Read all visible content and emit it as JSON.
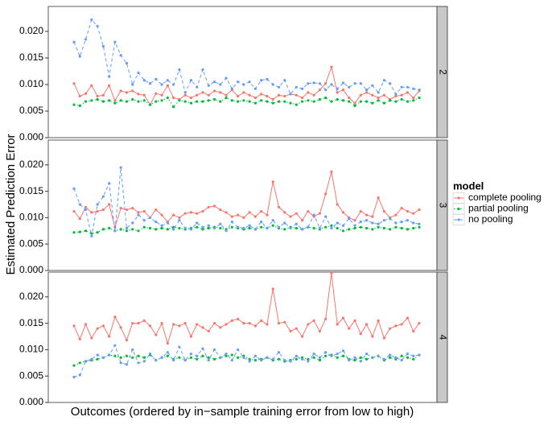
{
  "chart_data": {
    "type": "line",
    "y_label": "Estimated Prediction Error",
    "x_label": "Outcomes (ordered by in−sample training error from low to high)",
    "legend_title": "model",
    "ylim": [
      0,
      0.0247
    ],
    "yticks": [
      {
        "value": 0,
        "label": "0.000"
      },
      {
        "value": 0.005,
        "label": "0.005"
      },
      {
        "value": 0.01,
        "label": "0.010"
      },
      {
        "value": 0.015,
        "label": "0.015"
      },
      {
        "value": 0.02,
        "label": "0.020"
      }
    ],
    "series": [
      {
        "name": "complete pooling",
        "color": "#F8766D",
        "dash": "solid"
      },
      {
        "name": "partial pooling",
        "color": "#00BA38",
        "dash": "dotted"
      },
      {
        "name": "no pooling",
        "color": "#619CFF",
        "dash": "dashed"
      }
    ],
    "facets": [
      {
        "label": "2",
        "series": [
          {
            "values": [
              0.0102,
              0.0078,
              0.0083,
              0.0098,
              0.0078,
              0.008,
              0.0098,
              0.007,
              0.0088,
              0.0085,
              0.0088,
              0.0082,
              0.008,
              0.0062,
              0.0083,
              0.008,
              0.0098,
              0.0075,
              0.0072,
              0.008,
              0.0075,
              0.008,
              0.0085,
              0.008,
              0.0088,
              0.0085,
              0.008,
              0.009,
              0.0078,
              0.0085,
              0.008,
              0.0075,
              0.0082,
              0.0078,
              0.0072,
              0.008,
              0.0078,
              0.0082,
              0.008,
              0.0075,
              0.0085,
              0.008,
              0.009,
              0.0102,
              0.0133,
              0.0085,
              0.009,
              0.0075,
              0.0065,
              0.008,
              0.0085,
              0.008,
              0.0075,
              0.008,
              0.0072,
              0.0078,
              0.008,
              0.0085,
              0.0075,
              0.0088
            ]
          },
          {
            "values": [
              0.0062,
              0.006,
              0.0068,
              0.007,
              0.0072,
              0.0068,
              0.007,
              0.0065,
              0.007,
              0.0068,
              0.0072,
              0.0068,
              0.007,
              0.0062,
              0.0068,
              0.007,
              0.0075,
              0.0058,
              0.007,
              0.0068,
              0.0065,
              0.0068,
              0.0068,
              0.007,
              0.0072,
              0.0068,
              0.0075,
              0.007,
              0.0068,
              0.007,
              0.0068,
              0.0065,
              0.007,
              0.0068,
              0.0065,
              0.0068,
              0.0068,
              0.0065,
              0.0062,
              0.0068,
              0.007,
              0.0068,
              0.0072,
              0.0075,
              0.0068,
              0.0072,
              0.007,
              0.0068,
              0.006,
              0.0068,
              0.0068,
              0.0065,
              0.007,
              0.0065,
              0.007,
              0.0068,
              0.0072,
              0.0068,
              0.007,
              0.0075
            ]
          },
          {
            "values": [
              0.018,
              0.0153,
              0.0185,
              0.0222,
              0.021,
              0.0172,
              0.0115,
              0.018,
              0.0155,
              0.014,
              0.01,
              0.0122,
              0.0108,
              0.0102,
              0.011,
              0.01,
              0.0108,
              0.01,
              0.0128,
              0.0085,
              0.0108,
              0.0095,
              0.0128,
              0.0098,
              0.0105,
              0.01,
              0.0112,
              0.0092,
              0.0105,
              0.01,
              0.0105,
              0.0092,
              0.0108,
              0.011,
              0.01,
              0.0095,
              0.0108,
              0.0082,
              0.0095,
              0.0092,
              0.0102,
              0.0103,
              0.0102,
              0.009,
              0.01,
              0.0092,
              0.0103,
              0.0095,
              0.0102,
              0.0102,
              0.009,
              0.0098,
              0.0085,
              0.0108,
              0.0102,
              0.0082,
              0.0095,
              0.0095,
              0.0092,
              0.009
            ]
          }
        ]
      },
      {
        "label": "3",
        "series": [
          {
            "values": [
              0.0112,
              0.0098,
              0.012,
              0.011,
              0.0112,
              0.0115,
              0.0125,
              0.0082,
              0.0118,
              0.0115,
              0.0118,
              0.011,
              0.0112,
              0.01,
              0.0115,
              0.0105,
              0.0092,
              0.0105,
              0.01,
              0.0108,
              0.011,
              0.0108,
              0.0112,
              0.012,
              0.0122,
              0.0115,
              0.011,
              0.0102,
              0.0105,
              0.01,
              0.011,
              0.0102,
              0.0112,
              0.0105,
              0.0168,
              0.012,
              0.011,
              0.0102,
              0.0108,
              0.0095,
              0.0112,
              0.0102,
              0.0108,
              0.0145,
              0.0187,
              0.0125,
              0.011,
              0.01,
              0.0095,
              0.0112,
              0.0105,
              0.0102,
              0.0138,
              0.0112,
              0.01,
              0.0105,
              0.0118,
              0.0112,
              0.0108,
              0.0115
            ]
          },
          {
            "values": [
              0.0072,
              0.0073,
              0.0075,
              0.007,
              0.0072,
              0.0078,
              0.008,
              0.0075,
              0.0078,
              0.0075,
              0.0078,
              0.0075,
              0.0082,
              0.008,
              0.0078,
              0.008,
              0.0078,
              0.0082,
              0.008,
              0.0078,
              0.008,
              0.0082,
              0.0078,
              0.008,
              0.0082,
              0.008,
              0.0078,
              0.0082,
              0.008,
              0.0078,
              0.008,
              0.0078,
              0.0082,
              0.008,
              0.0085,
              0.008,
              0.0078,
              0.0082,
              0.008,
              0.0078,
              0.0082,
              0.008,
              0.0078,
              0.0082,
              0.0085,
              0.008,
              0.0075,
              0.0078,
              0.008,
              0.0082,
              0.008,
              0.0078,
              0.0082,
              0.008,
              0.0078,
              0.0082,
              0.008,
              0.0078,
              0.008,
              0.0082
            ]
          },
          {
            "values": [
              0.0155,
              0.0125,
              0.0115,
              0.0065,
              0.0125,
              0.014,
              0.0165,
              0.0075,
              0.0195,
              0.008,
              0.009,
              0.0105,
              0.0095,
              0.01,
              0.0092,
              0.0085,
              0.009,
              0.0078,
              0.0095,
              0.008,
              0.0078,
              0.009,
              0.0082,
              0.0085,
              0.008,
              0.0088,
              0.0075,
              0.0092,
              0.0082,
              0.008,
              0.0085,
              0.0078,
              0.0092,
              0.008,
              0.0095,
              0.0082,
              0.009,
              0.008,
              0.0088,
              0.0078,
              0.0082,
              0.0105,
              0.008,
              0.0102,
              0.008,
              0.009,
              0.0085,
              0.0098,
              0.0085,
              0.0092,
              0.0095,
              0.009,
              0.0088,
              0.0095,
              0.0098,
              0.009,
              0.0092,
              0.0095,
              0.009,
              0.0088
            ]
          }
        ]
      },
      {
        "label": "4",
        "series": [
          {
            "values": [
              0.0145,
              0.012,
              0.0148,
              0.0122,
              0.014,
              0.0145,
              0.0125,
              0.0162,
              0.0142,
              0.0118,
              0.015,
              0.015,
              0.0155,
              0.0145,
              0.0128,
              0.015,
              0.0112,
              0.0148,
              0.0145,
              0.015,
              0.0125,
              0.0148,
              0.0142,
              0.0135,
              0.015,
              0.0142,
              0.0148,
              0.0155,
              0.0158,
              0.015,
              0.015,
              0.0145,
              0.0155,
              0.0148,
              0.0215,
              0.015,
              0.0152,
              0.0135,
              0.014,
              0.0125,
              0.0148,
              0.0155,
              0.0135,
              0.0158,
              0.0245,
              0.0148,
              0.016,
              0.014,
              0.0155,
              0.013,
              0.0148,
              0.0125,
              0.0155,
              0.0122,
              0.014,
              0.0145,
              0.0148,
              0.016,
              0.0135,
              0.015
            ]
          },
          {
            "values": [
              0.007,
              0.0075,
              0.0078,
              0.008,
              0.0082,
              0.0085,
              0.009,
              0.0088,
              0.0085,
              0.0088,
              0.0085,
              0.0088,
              0.0085,
              0.009,
              0.008,
              0.0085,
              0.0088,
              0.0082,
              0.0085,
              0.008,
              0.0085,
              0.0082,
              0.0088,
              0.0085,
              0.0082,
              0.0085,
              0.0088,
              0.009,
              0.0085,
              0.0088,
              0.0082,
              0.008,
              0.0082,
              0.0085,
              0.008,
              0.0082,
              0.0078,
              0.008,
              0.0082,
              0.0085,
              0.0082,
              0.0085,
              0.008,
              0.0088,
              0.009,
              0.0085,
              0.0088,
              0.0082,
              0.008,
              0.0085,
              0.0082,
              0.0085,
              0.0088,
              0.008,
              0.0085,
              0.0082,
              0.0088,
              0.0085,
              0.0082,
              0.009
            ]
          },
          {
            "values": [
              0.0048,
              0.0052,
              0.0078,
              0.0082,
              0.009,
              0.0085,
              0.009,
              0.0108,
              0.0075,
              0.0072,
              0.01,
              0.0075,
              0.0078,
              0.0092,
              0.008,
              0.0085,
              0.0095,
              0.008,
              0.0105,
              0.008,
              0.0092,
              0.0088,
              0.0102,
              0.008,
              0.01,
              0.0085,
              0.0092,
              0.008,
              0.01,
              0.0085,
              0.0078,
              0.0088,
              0.008,
              0.0085,
              0.0082,
              0.0095,
              0.008,
              0.0078,
              0.0088,
              0.0082,
              0.0078,
              0.0092,
              0.0085,
              0.0095,
              0.0088,
              0.0092,
              0.0098,
              0.008,
              0.0085,
              0.0078,
              0.0092,
              0.0085,
              0.0088,
              0.0082,
              0.009,
              0.0085,
              0.008,
              0.0092,
              0.0088,
              0.009
            ]
          }
        ]
      }
    ]
  }
}
